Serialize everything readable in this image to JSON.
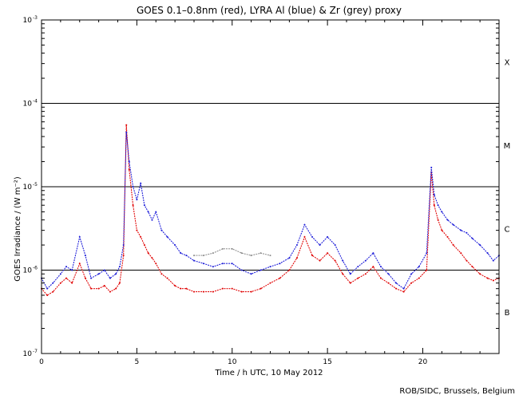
{
  "chart_data": {
    "type": "scatter",
    "title": "GOES 0.1–0.8nm (red), LYRA Al (blue) & Zr (grey) proxy",
    "xlabel": "Time / h UTC, 10 May 2012",
    "ylabel": "GOES Irradiance / (W m⁻²)",
    "xlim": [
      0,
      24
    ],
    "ylim": [
      1e-07,
      0.001
    ],
    "yscale": "log",
    "x_ticks": [
      0,
      5,
      10,
      15,
      20
    ],
    "x_tick_labels": [
      "0",
      "5",
      "10",
      "15",
      "20"
    ],
    "y_ticks": [
      {
        "value": 0.001,
        "base": "10",
        "exp": "-3"
      },
      {
        "value": 0.0001,
        "base": "10",
        "exp": "-4"
      },
      {
        "value": 1e-05,
        "base": "10",
        "exp": "-5"
      },
      {
        "value": 1e-06,
        "base": "10",
        "exp": "-6"
      },
      {
        "value": 1e-07,
        "base": "10",
        "exp": "-7"
      }
    ],
    "reference_lines": [
      0.0001,
      1e-05,
      1e-06
    ],
    "flare_classes": [
      {
        "label": "X",
        "value": 0.000316
      },
      {
        "label": "M",
        "value": 3.16e-05
      },
      {
        "label": "C",
        "value": 3.16e-06
      },
      {
        "label": "B",
        "value": 3.16e-07
      }
    ],
    "series": [
      {
        "name": "GOES 0.1–0.8nm",
        "color": "#e00000",
        "x": [
          0.0,
          0.3,
          0.6,
          1.0,
          1.3,
          1.6,
          2.0,
          2.3,
          2.6,
          3.0,
          3.3,
          3.6,
          3.9,
          4.1,
          4.3,
          4.45,
          4.6,
          4.8,
          5.0,
          5.2,
          5.4,
          5.6,
          5.8,
          6.0,
          6.3,
          6.6,
          7.0,
          7.3,
          7.6,
          8.0,
          8.5,
          9.0,
          9.5,
          10.0,
          10.5,
          11.0,
          11.5,
          12.0,
          12.5,
          13.0,
          13.4,
          13.8,
          14.2,
          14.6,
          15.0,
          15.4,
          15.8,
          16.2,
          16.6,
          17.0,
          17.4,
          17.8,
          18.2,
          18.6,
          19.0,
          19.4,
          19.8,
          20.2,
          20.45,
          20.6,
          20.8,
          21.0,
          21.3,
          21.6,
          22.0,
          22.3,
          22.6,
          23.0,
          23.4,
          23.7,
          24.0
        ],
        "values": [
          6e-07,
          5e-07,
          5.5e-07,
          7e-07,
          8e-07,
          7e-07,
          1.2e-06,
          8e-07,
          6e-07,
          6e-07,
          6.5e-07,
          5.5e-07,
          6e-07,
          7e-07,
          1.5e-06,
          5.5e-05,
          1.6e-05,
          6e-06,
          3e-06,
          2.5e-06,
          2e-06,
          1.6e-06,
          1.4e-06,
          1.2e-06,
          9e-07,
          8e-07,
          6.5e-07,
          6e-07,
          6e-07,
          5.5e-07,
          5.5e-07,
          5.5e-07,
          6e-07,
          6e-07,
          5.5e-07,
          5.5e-07,
          6e-07,
          7e-07,
          8e-07,
          1e-06,
          1.4e-06,
          2.5e-06,
          1.5e-06,
          1.3e-06,
          1.6e-06,
          1.3e-06,
          9e-07,
          7e-07,
          8e-07,
          9e-07,
          1.1e-06,
          8e-07,
          7e-07,
          6e-07,
          5.5e-07,
          7e-07,
          8e-07,
          1e-06,
          1.5e-05,
          6e-06,
          4e-06,
          3e-06,
          2.5e-06,
          2e-06,
          1.6e-06,
          1.3e-06,
          1.1e-06,
          9e-07,
          8e-07,
          7.5e-07,
          8e-07
        ]
      },
      {
        "name": "LYRA Al proxy",
        "color": "#1a1ad8",
        "x": [
          0.0,
          0.3,
          0.6,
          1.0,
          1.3,
          1.6,
          2.0,
          2.3,
          2.6,
          3.0,
          3.3,
          3.6,
          3.9,
          4.1,
          4.3,
          4.45,
          4.6,
          4.8,
          5.0,
          5.2,
          5.4,
          5.6,
          5.8,
          6.0,
          6.3,
          6.6,
          7.0,
          7.3,
          7.6,
          8.0,
          8.5,
          9.0,
          9.5,
          10.0,
          10.5,
          11.0,
          11.5,
          12.0,
          12.5,
          13.0,
          13.4,
          13.8,
          14.2,
          14.6,
          15.0,
          15.4,
          15.8,
          16.2,
          16.6,
          17.0,
          17.4,
          17.8,
          18.2,
          18.6,
          19.0,
          19.4,
          19.8,
          20.2,
          20.45,
          20.6,
          20.8,
          21.0,
          21.3,
          21.6,
          22.0,
          22.3,
          22.6,
          23.0,
          23.4,
          23.7,
          24.0
        ],
        "values": [
          8e-07,
          6e-07,
          7e-07,
          9e-07,
          1.1e-06,
          1e-06,
          2.5e-06,
          1.5e-06,
          8e-07,
          9e-07,
          1e-06,
          8e-07,
          9e-07,
          1.1e-06,
          2e-06,
          4.5e-05,
          2e-05,
          1e-05,
          7e-06,
          1.1e-05,
          6e-06,
          5e-06,
          4e-06,
          5e-06,
          3e-06,
          2.5e-06,
          2e-06,
          1.6e-06,
          1.5e-06,
          1.3e-06,
          1.2e-06,
          1.1e-06,
          1.2e-06,
          1.2e-06,
          1e-06,
          9e-07,
          1e-06,
          1.1e-06,
          1.2e-06,
          1.4e-06,
          2e-06,
          3.5e-06,
          2.5e-06,
          2e-06,
          2.5e-06,
          2e-06,
          1.3e-06,
          9e-07,
          1.1e-06,
          1.3e-06,
          1.6e-06,
          1.1e-06,
          9e-07,
          7e-07,
          6e-07,
          9e-07,
          1.1e-06,
          1.6e-06,
          1.7e-05,
          8e-06,
          6e-06,
          5e-06,
          4e-06,
          3.5e-06,
          3e-06,
          2.8e-06,
          2.4e-06,
          2e-06,
          1.6e-06,
          1.3e-06,
          1.5e-06
        ]
      },
      {
        "name": "LYRA Zr proxy",
        "color": "#8c8c8c",
        "x": [
          8.0,
          8.5,
          9.0,
          9.5,
          10.0,
          10.5,
          11.0,
          11.5,
          12.0
        ],
        "values": [
          1.5e-06,
          1.5e-06,
          1.6e-06,
          1.8e-06,
          1.8e-06,
          1.6e-06,
          1.5e-06,
          1.6e-06,
          1.5e-06
        ]
      }
    ]
  },
  "footer": {
    "credit": "ROB/SIDC, Brussels, Belgium"
  }
}
